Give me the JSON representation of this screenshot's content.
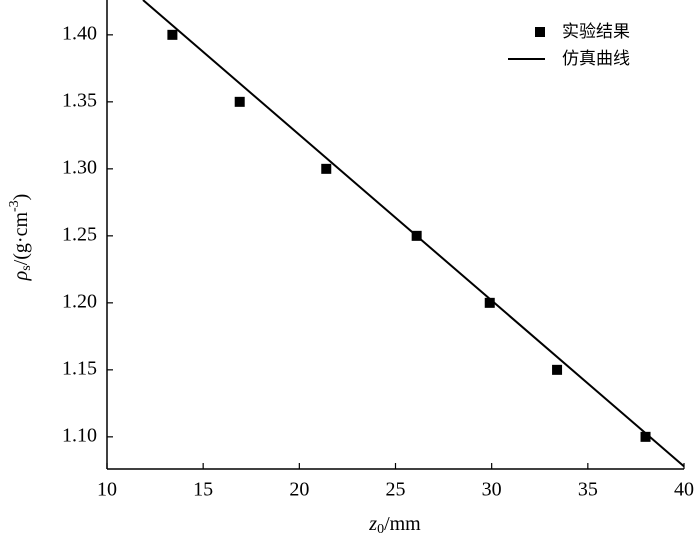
{
  "chart_data": {
    "type": "scatter",
    "x_label": [
      "z",
      "0",
      "/mm"
    ],
    "y_label": [
      "ρ",
      "s",
      "/(g·cm",
      "-3",
      ")"
    ],
    "xlim": [
      10,
      40
    ],
    "ylim": [
      1.076,
      1.426
    ],
    "xticks": [
      10,
      15,
      20,
      25,
      30,
      35,
      40
    ],
    "yticks": [
      {
        "value": 1.1,
        "label": "1.10"
      },
      {
        "value": 1.15,
        "label": "1.15"
      },
      {
        "value": 1.2,
        "label": "1.20"
      },
      {
        "value": 1.25,
        "label": "1.25"
      },
      {
        "value": 1.3,
        "label": "1.30"
      },
      {
        "value": 1.35,
        "label": "1.35"
      },
      {
        "value": 1.4,
        "label": "1.40"
      }
    ],
    "legend": "top-right",
    "series": [
      {
        "name": "实验结果",
        "type": "scatter",
        "color": "#000000",
        "x": [
          13.4,
          16.9,
          21.4,
          26.1,
          29.9,
          33.4,
          38.0
        ],
        "values": [
          1.4,
          1.35,
          1.3,
          1.25,
          1.2,
          1.15,
          1.1
        ]
      },
      {
        "name": "仿真曲线",
        "type": "line",
        "color": "#000000",
        "x": [
          11.87,
          40
        ],
        "values": [
          1.426,
          1.078
        ]
      }
    ]
  }
}
